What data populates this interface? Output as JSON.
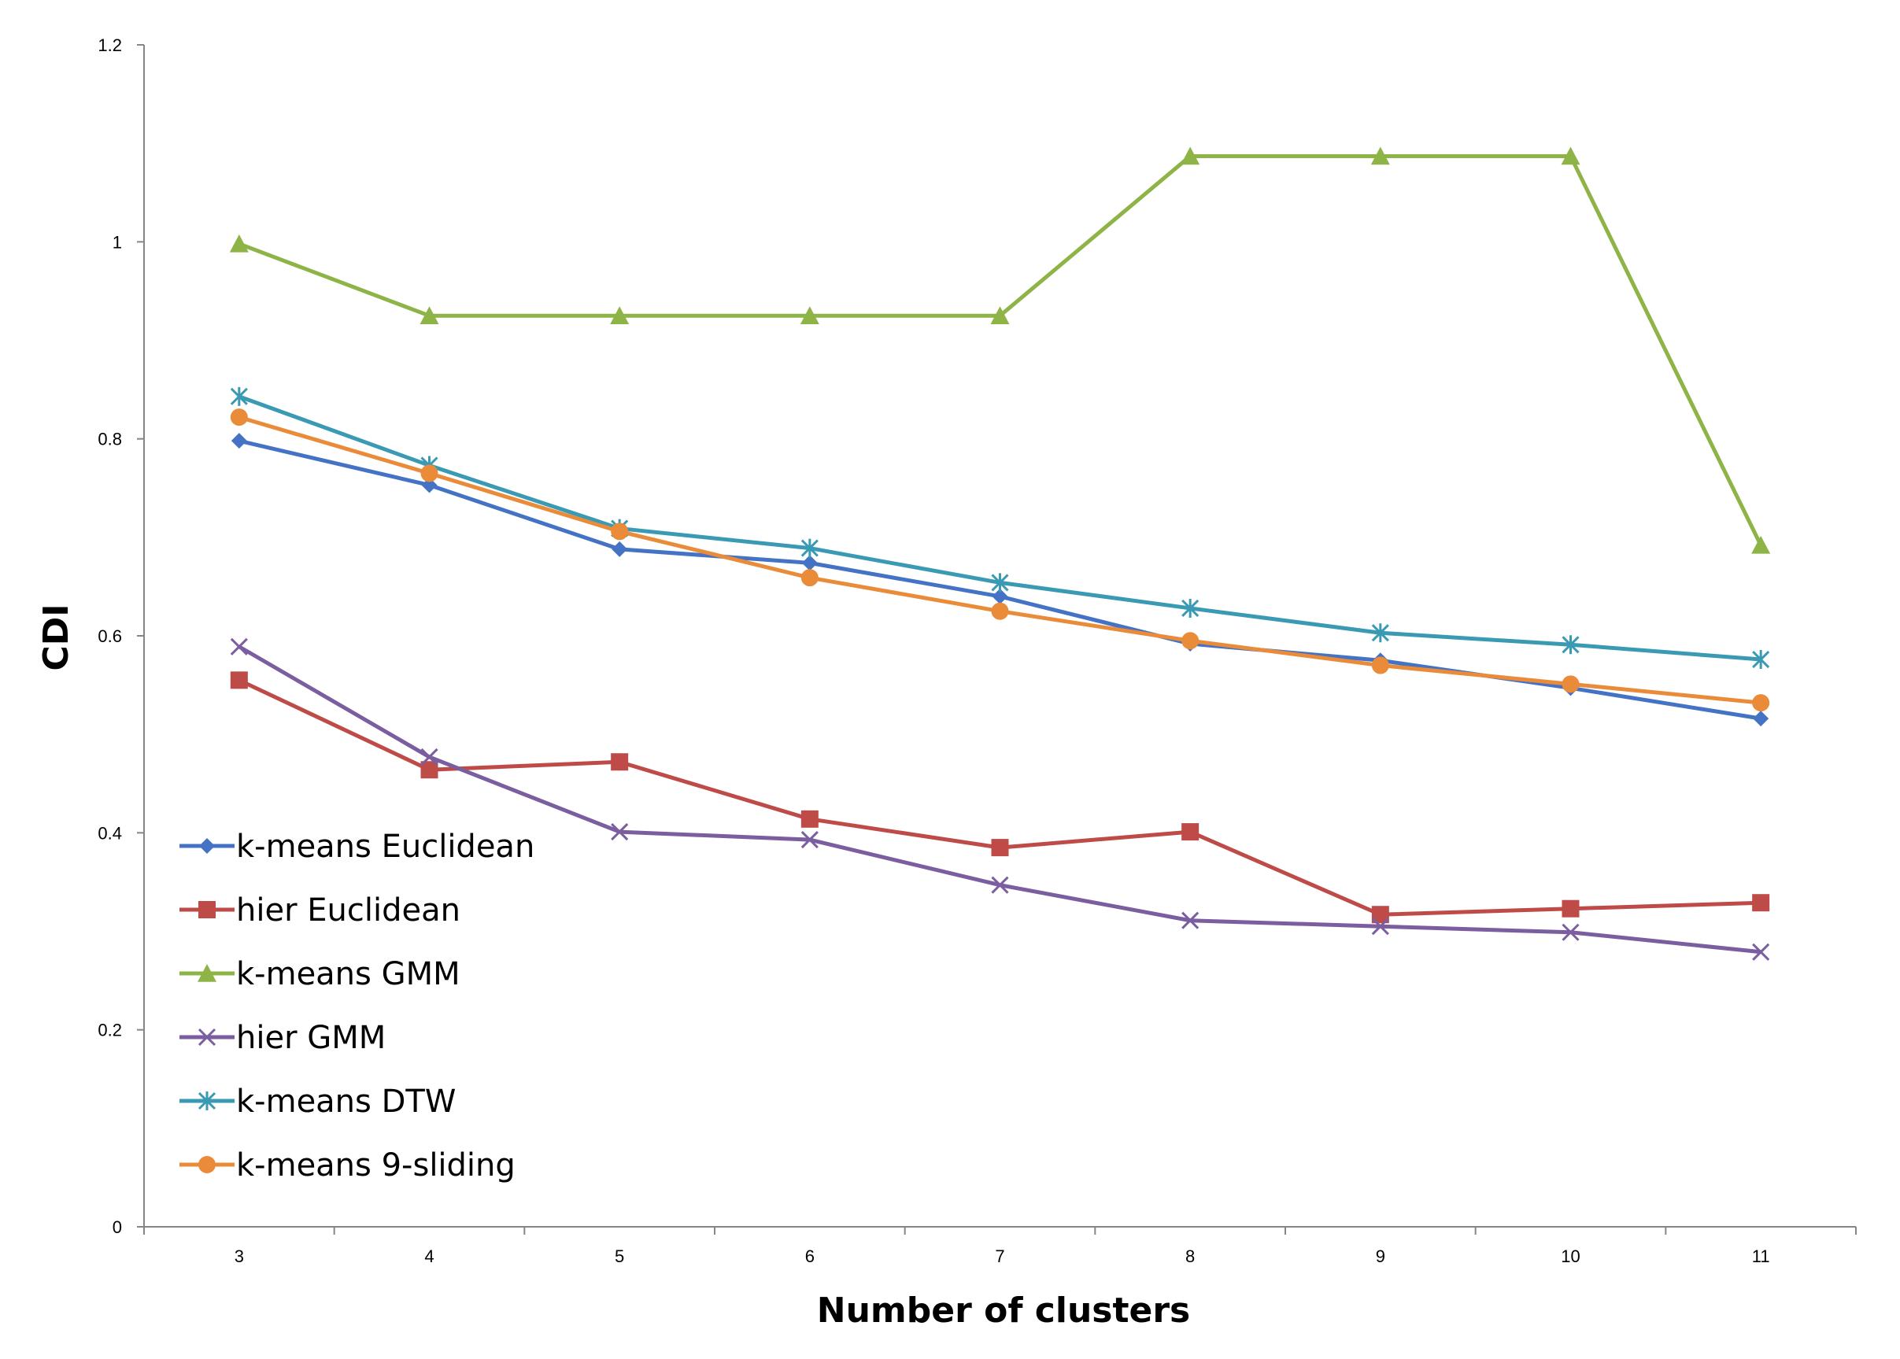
{
  "chart_data": {
    "type": "line",
    "title": "",
    "xlabel": "Number of clusters",
    "ylabel": "CDI",
    "categories": [
      "3",
      "4",
      "5",
      "6",
      "7",
      "8",
      "9",
      "10",
      "11"
    ],
    "ylim": [
      0,
      1.2
    ],
    "yticks": [
      "0",
      "0.2",
      "0.4",
      "0.6",
      "0.8",
      "1",
      "1.2"
    ],
    "legend_position": "bottom-left",
    "series": [
      {
        "name": "k-means Euclidean",
        "color": "#4472C4",
        "marker": "diamond",
        "values": [
          0.798,
          0.753,
          0.688,
          0.674,
          0.64,
          0.592,
          0.575,
          0.547,
          0.516
        ]
      },
      {
        "name": "hier Euclidean",
        "color": "#BE4B48",
        "marker": "square",
        "values": [
          0.555,
          0.464,
          0.472,
          0.414,
          0.385,
          0.401,
          0.317,
          0.323,
          0.329
        ]
      },
      {
        "name": "k-means GMM",
        "color": "#8EB448",
        "marker": "triangle",
        "values": [
          0.998,
          0.925,
          0.925,
          0.925,
          0.925,
          1.087,
          1.087,
          1.087,
          0.692
        ]
      },
      {
        "name": "hier GMM",
        "color": "#7B5E9F",
        "marker": "x",
        "values": [
          0.589,
          0.477,
          0.401,
          0.393,
          0.347,
          0.311,
          0.305,
          0.299,
          0.279
        ]
      },
      {
        "name": "k-means DTW",
        "color": "#3B9AB3",
        "marker": "star",
        "values": [
          0.843,
          0.773,
          0.709,
          0.689,
          0.654,
          0.628,
          0.603,
          0.591,
          0.576
        ]
      },
      {
        "name": "k-means 9-sliding",
        "color": "#EA8B39",
        "marker": "circle",
        "values": [
          0.822,
          0.765,
          0.706,
          0.659,
          0.625,
          0.595,
          0.57,
          0.551,
          0.532
        ]
      }
    ]
  }
}
